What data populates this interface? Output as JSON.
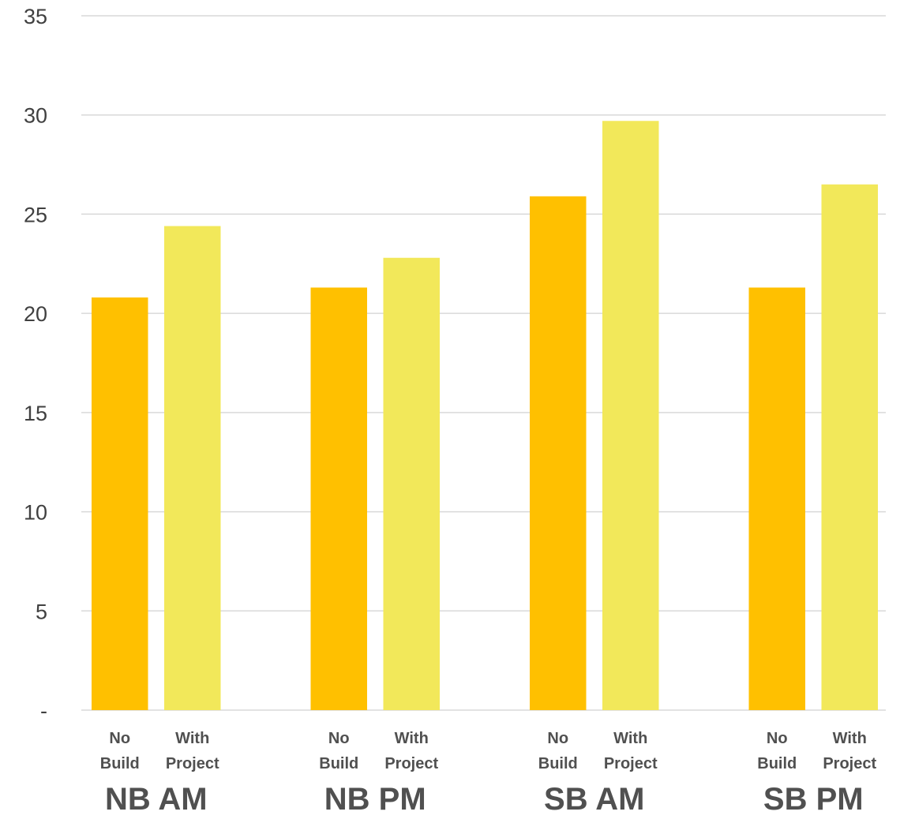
{
  "chart_data": {
    "type": "bar",
    "categories": [
      "NB AM",
      "NB PM",
      "SB AM",
      "SB PM"
    ],
    "bar_labels": [
      [
        "No",
        "Build"
      ],
      [
        "With",
        "Project"
      ]
    ],
    "series": [
      {
        "values": [
          20.8,
          21.3,
          25.9,
          21.3
        ],
        "color": "#FFC000"
      },
      {
        "values": [
          24.4,
          22.8,
          29.7,
          26.5
        ],
        "color": "#F2E85A"
      }
    ],
    "ylim": [
      0,
      35
    ],
    "yticks": [
      {
        "value": 0,
        "label": "-"
      },
      {
        "value": 5,
        "label": "5"
      },
      {
        "value": 10,
        "label": "10"
      },
      {
        "value": 15,
        "label": "15"
      },
      {
        "value": 20,
        "label": "20"
      },
      {
        "value": 25,
        "label": "25"
      },
      {
        "value": 30,
        "label": "30"
      },
      {
        "value": 35,
        "label": "35"
      }
    ],
    "grid": true,
    "legend": "none",
    "gridline_color": "#D9D9D9",
    "text_color": "#505050"
  }
}
